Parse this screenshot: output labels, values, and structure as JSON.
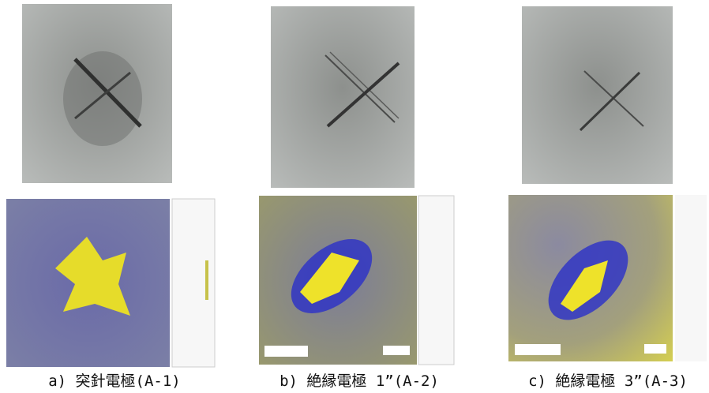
{
  "figure": {
    "panels": [
      {
        "caption": "a) 突針電極(A-1)"
      },
      {
        "caption": "b) 絶縁電極 1”(A-2)"
      },
      {
        "caption": "c) 絶縁電極 3”(A-3)"
      }
    ]
  }
}
